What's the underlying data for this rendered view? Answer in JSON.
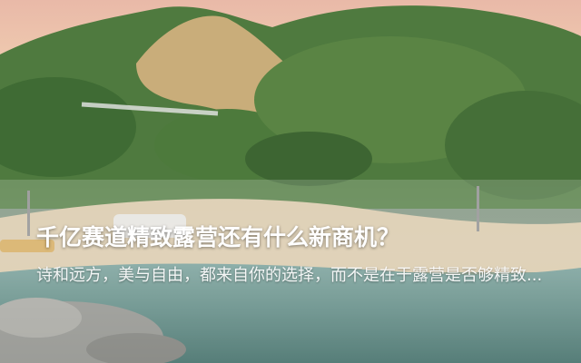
{
  "article": {
    "headline": "千亿赛道精致露营还有什么新商机？",
    "summary": "诗和远方，美与自由，都来自你的选择，而不是在于露营是否够精致..."
  },
  "image": {
    "subject": "hillside-beach-scene"
  },
  "colors": {
    "headline_text": "#ffffff",
    "sky": "#f0c9a6",
    "sea": "#5f8f87"
  }
}
